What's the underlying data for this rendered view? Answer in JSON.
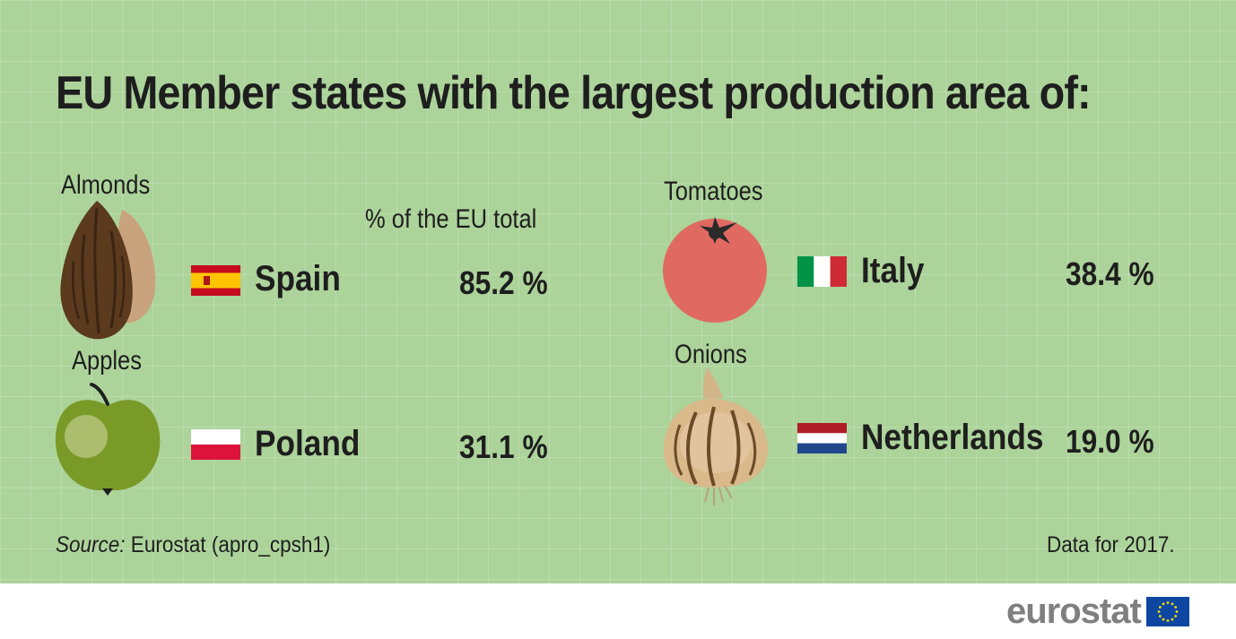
{
  "title": "EU Member states with the largest production area of:",
  "column_header": "% of the EU total",
  "items": [
    {
      "crop": "Almonds",
      "country": "Spain",
      "value": "85.2 %",
      "flag": "spain-flag",
      "icon": "almond-icon"
    },
    {
      "crop": "Apples",
      "country": "Poland",
      "value": "31.1 %",
      "flag": "poland-flag",
      "icon": "apple-icon"
    },
    {
      "crop": "Tomatoes",
      "country": "Italy",
      "value": "38.4 %",
      "flag": "italy-flag",
      "icon": "tomato-icon"
    },
    {
      "crop": "Onions",
      "country": "Netherlands",
      "value": "19.0 %",
      "flag": "netherlands-flag",
      "icon": "onion-icon"
    }
  ],
  "source": {
    "label": "Source:",
    "text": " Eurostat (apro_cpsh1)"
  },
  "data_note": "Data for 2017.",
  "logo": {
    "text": "eurostat",
    "icon": "eu-flag-icon"
  },
  "colors": {
    "background": "#acd39a",
    "text": "#1e1e1e",
    "logo_grey": "#7f7f7f",
    "eu_blue": "#0e47a1",
    "eu_gold": "#ffdd00"
  }
}
